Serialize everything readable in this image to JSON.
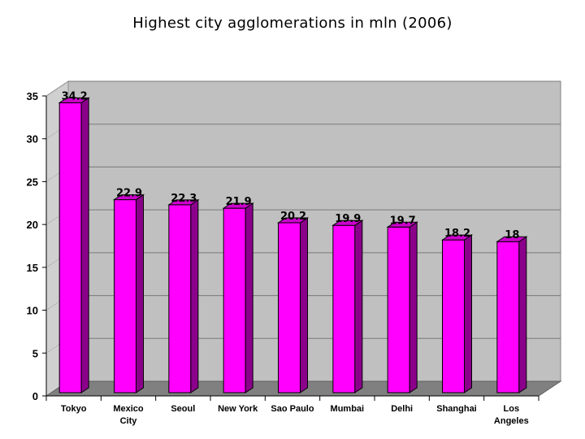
{
  "chart_data": {
    "type": "bar",
    "title": "Highest city agglomerations in mln (2006)",
    "categories": [
      "Tokyo",
      "Mexico City",
      "Seoul",
      "New York",
      "Sao Paulo",
      "Mumbai",
      "Delhi",
      "Shanghai",
      "Los Angeles"
    ],
    "category_lines": [
      [
        "Tokyo"
      ],
      [
        "Mexico",
        "City"
      ],
      [
        "Seoul"
      ],
      [
        "New York"
      ],
      [
        "Sao Paulo"
      ],
      [
        "Mumbai"
      ],
      [
        "Delhi"
      ],
      [
        "Shanghai"
      ],
      [
        "Los",
        "Angeles"
      ]
    ],
    "values": [
      34.2,
      22.9,
      22.3,
      21.9,
      20.2,
      19.9,
      19.7,
      18.2,
      18
    ],
    "data_labels": [
      "34.2",
      "22.9",
      "22.3",
      "21.9",
      "20.2",
      "19.9",
      "19.7",
      "18.2",
      "18"
    ],
    "yticks": [
      0,
      5,
      10,
      15,
      20,
      25,
      30,
      35
    ],
    "ylim": [
      0,
      35
    ],
    "xlabel": "",
    "ylabel": "",
    "grid": true,
    "legend": "none",
    "colors": {
      "bar_front": "#ff00ff",
      "bar_side": "#8b008b",
      "bar_top": "#cc00cc",
      "wall": "#c0c0c0",
      "floor": "#808080"
    }
  }
}
